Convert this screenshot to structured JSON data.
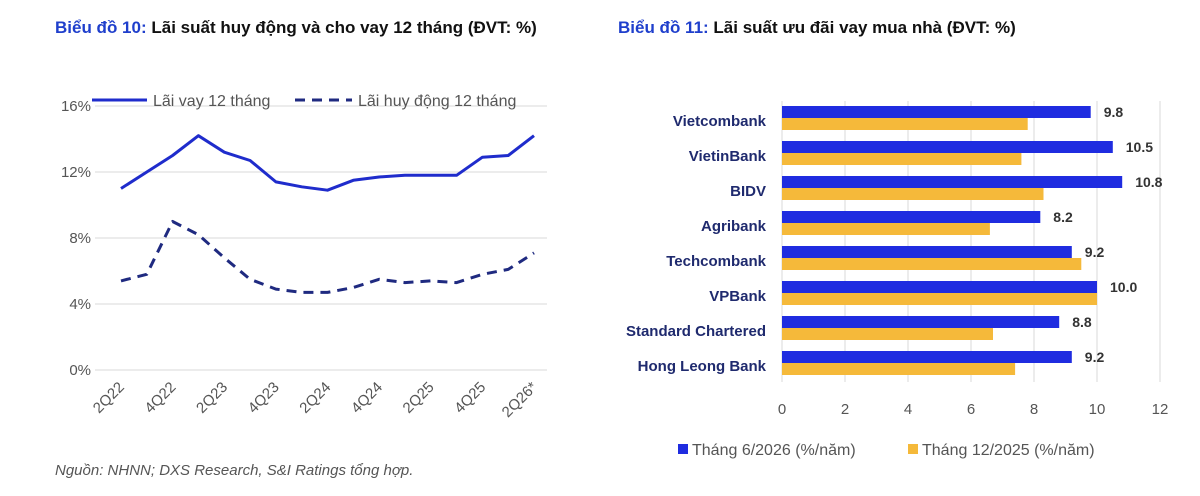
{
  "left_title": {
    "prefix": "Biểu đồ 10:",
    "text": "Lãi suất huy động và cho vay 12 tháng (ĐVT: %)"
  },
  "right_title": {
    "prefix": "Biểu đồ 11:",
    "text": "Lãi suất ưu đãi vay mua nhà (ĐVT: %)"
  },
  "source": "Nguồn: NHNN; DXS Research, S&I Ratings tổng hợp.",
  "chart_data": [
    {
      "type": "line",
      "x": [
        "2Q22",
        "3Q22",
        "4Q22",
        "1Q23",
        "2Q23",
        "3Q23",
        "4Q23",
        "1Q24",
        "2Q24",
        "3Q24",
        "4Q24",
        "1Q25",
        "2Q25",
        "3Q25",
        "4Q25",
        "1Q26",
        "2Q26*"
      ],
      "tick_labels": [
        "2Q22",
        "4Q22",
        "2Q23",
        "4Q23",
        "2Q24",
        "4Q24",
        "2Q25",
        "4Q25",
        "2Q26*"
      ],
      "y_tick_labels": [
        "0%",
        "4%",
        "8%",
        "12%",
        "16%"
      ],
      "ylim": [
        0,
        16
      ],
      "grid": true,
      "legend": "top",
      "series": [
        {
          "name": "Lãi vay 12 tháng",
          "style": "solid",
          "color": "#1f2ccc",
          "values": [
            11.0,
            12.0,
            13.0,
            14.2,
            13.2,
            12.7,
            11.4,
            11.1,
            10.9,
            11.5,
            11.7,
            11.8,
            11.8,
            11.8,
            12.9,
            13.0,
            14.2
          ]
        },
        {
          "name": "Lãi huy động 12 tháng",
          "style": "dashed",
          "color": "#1f2a80",
          "values": [
            5.4,
            5.8,
            9.0,
            8.2,
            6.8,
            5.5,
            4.9,
            4.7,
            4.7,
            5.0,
            5.5,
            5.3,
            5.4,
            5.3,
            5.8,
            6.1,
            7.1
          ]
        }
      ]
    },
    {
      "type": "bar",
      "orientation": "horizontal",
      "categories": [
        "Vietcombank",
        "VietinBank",
        "BIDV",
        "Agribank",
        "Techcombank",
        "VPBank",
        "Standard Chartered",
        "Hong Leong Bank"
      ],
      "xlim": [
        0,
        12
      ],
      "x_ticks": [
        0,
        2,
        4,
        6,
        8,
        10,
        12
      ],
      "grid": true,
      "legend": "bottom",
      "series": [
        {
          "name": "Tháng 6/2026 (%/năm)",
          "color": "#1f2ce0",
          "data_labels": true,
          "values": [
            9.8,
            10.5,
            10.8,
            8.2,
            9.2,
            10.0,
            8.8,
            9.2
          ]
        },
        {
          "name": "Tháng 12/2025 (%/năm)",
          "color": "#f5b93a",
          "data_labels": false,
          "values": [
            7.8,
            7.6,
            8.3,
            6.6,
            9.5,
            10.0,
            6.7,
            7.4
          ]
        }
      ]
    }
  ]
}
